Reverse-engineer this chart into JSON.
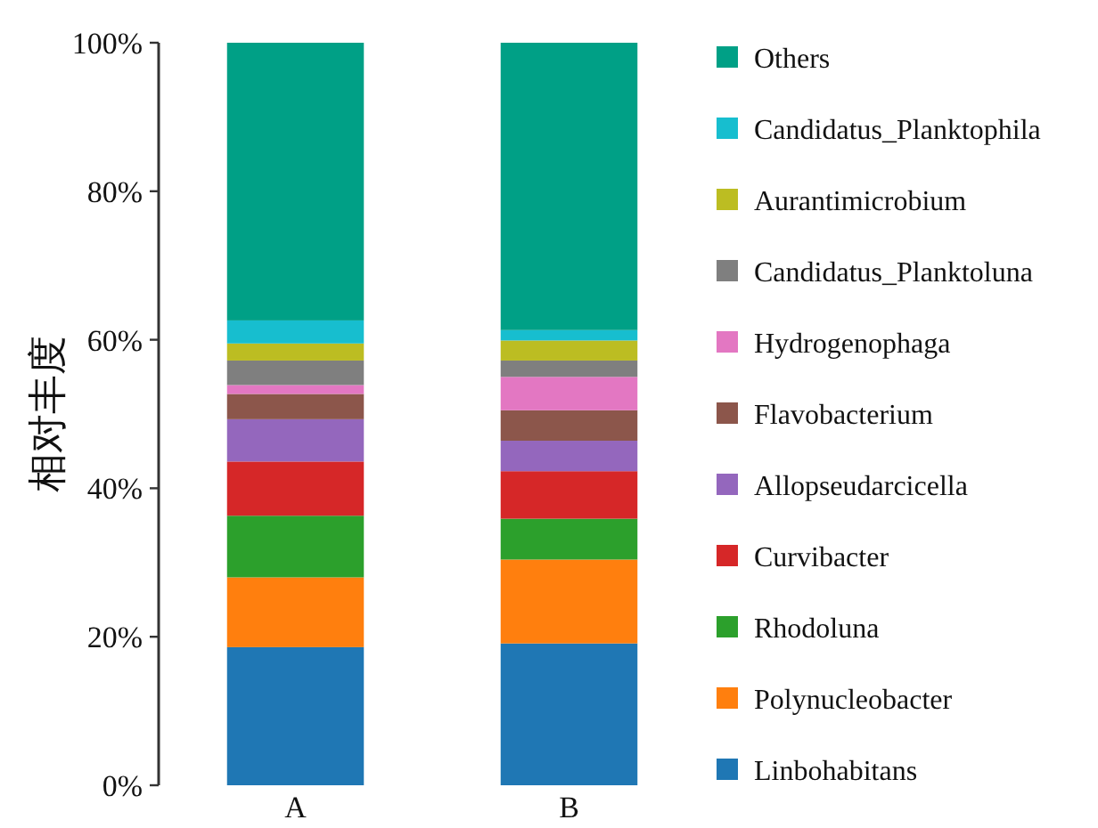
{
  "chart_data": {
    "type": "bar",
    "stacked": true,
    "ylabel": "相对丰度",
    "legend": "right",
    "categories": [
      "A",
      "B"
    ],
    "ylim": [
      0,
      100
    ],
    "yticks": [
      {
        "value": 0,
        "label": "0%"
      },
      {
        "value": 20,
        "label": "20%"
      },
      {
        "value": 40,
        "label": "40%"
      },
      {
        "value": 60,
        "label": "60%"
      },
      {
        "value": 80,
        "label": "80%"
      },
      {
        "value": 100,
        "label": "100%"
      }
    ],
    "series": [
      {
        "name": "Linbohabitans",
        "color": "#1f77b4",
        "values": [
          18.6,
          19.1
        ]
      },
      {
        "name": "Polynucleobacter",
        "color": "#ff7f0e",
        "values": [
          9.4,
          11.3
        ]
      },
      {
        "name": "Rhodoluna",
        "color": "#2ca02c",
        "values": [
          8.3,
          5.5
        ]
      },
      {
        "name": "Curvibacter",
        "color": "#d62728",
        "values": [
          7.3,
          6.4
        ]
      },
      {
        "name": "Allopseudarcicella",
        "color": "#9467bd",
        "values": [
          5.7,
          4.1
        ]
      },
      {
        "name": "Flavobacterium",
        "color": "#8c564b",
        "values": [
          3.4,
          4.1
        ]
      },
      {
        "name": "Hydrogenophaga",
        "color": "#e377c2",
        "values": [
          1.2,
          4.5
        ]
      },
      {
        "name": "Candidatus_Planktoluna",
        "color": "#7f7f7f",
        "values": [
          3.3,
          2.2
        ]
      },
      {
        "name": "Aurantimicrobium",
        "color": "#bcbd22",
        "values": [
          2.3,
          2.7
        ]
      },
      {
        "name": "Candidatus_Planktophila",
        "color": "#17becf",
        "values": [
          3.1,
          1.4
        ]
      },
      {
        "name": "Others",
        "color": "#00a086",
        "values": [
          37.4,
          38.7
        ]
      }
    ]
  }
}
